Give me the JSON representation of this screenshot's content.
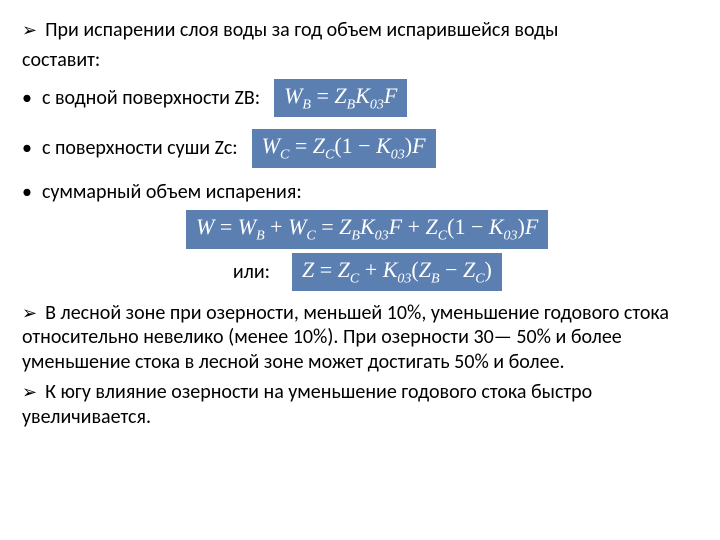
{
  "formula_bg": "#5a7fb0",
  "intro": {
    "line1": "При испарении слоя воды за год объем испарившейся воды",
    "line2": "составит:"
  },
  "item1": {
    "label": "с водной поверхности ZB:",
    "formula_html": "W<sub>B</sub> <span class='rm'>=</span> Z<sub>B</sub>K<sub>03</sub>F"
  },
  "item2": {
    "label": "с поверхности суши Zc:",
    "formula_html": "W<sub>C</sub> <span class='rm'>=</span> Z<sub>C</sub><span class='rm'>(1 − </span>K<sub>03</sub><span class='rm'>)</span>F"
  },
  "item3": {
    "label": "суммарный объем испарения:",
    "formula_html": "W <span class='rm'>=</span> W<sub>B</sub> <span class='rm'>+</span> W<sub>C</sub> <span class='rm'>=</span> Z<sub>B</sub>K<sub>03</sub>F <span class='rm'>+</span> Z<sub>C</sub><span class='rm'>(1 − </span>K<sub>03</sub><span class='rm'>)</span>F"
  },
  "or_label": "или:",
  "formula4_html": "Z <span class='rm'>=</span> Z<sub>C</sub> <span class='rm'>+</span> K<sub>03</sub><span class='rm'>(</span>Z<sub>B</sub> <span class='rm'>−</span> Z<sub>C</sub><span class='rm'>)</span>",
  "para1": "В лесной зоне при озерности, меньшей 10%, уменьшение годового стока относительно невелико (менее 10%). При озерности 30— 50% и более уменьшение стока в лесной зоне может достигать 50% и более.",
  "para2": "К югу влияние озерности на уменьшение годового стока быстро увеличивается."
}
